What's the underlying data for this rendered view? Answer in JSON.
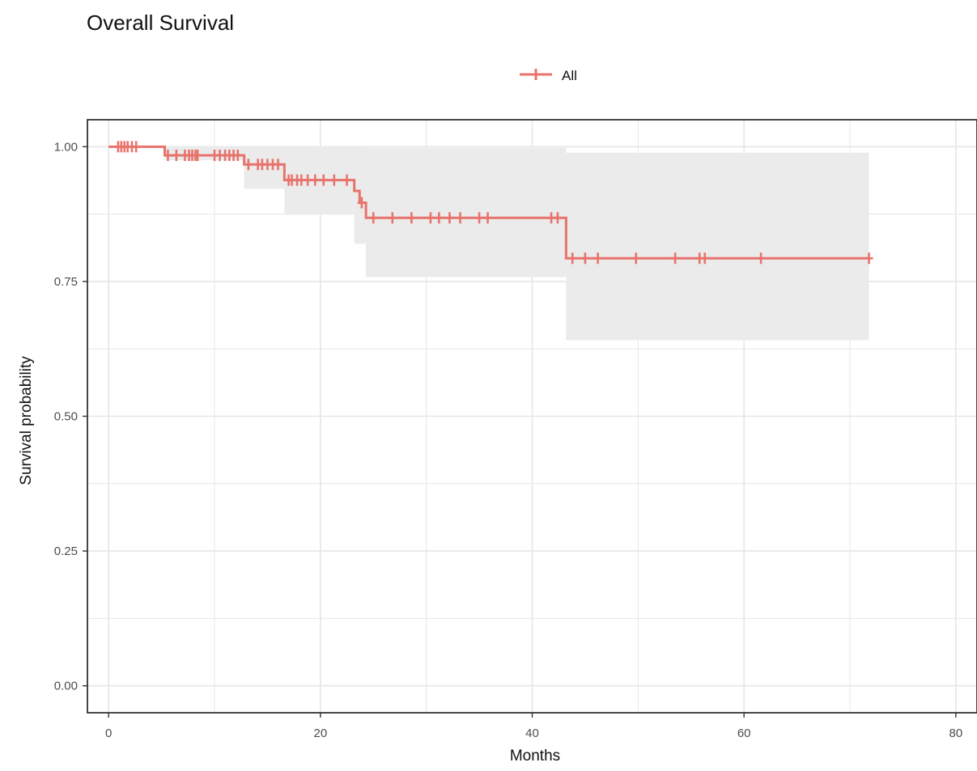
{
  "chart_data": {
    "type": "line",
    "subtype": "kaplan-meier",
    "title": "Overall Survival",
    "xlabel": "Months",
    "ylabel": "Survival probability",
    "xlim": [
      -2,
      82
    ],
    "ylim": [
      -0.05,
      1.05
    ],
    "x_ticks": [
      0,
      20,
      40,
      60,
      80
    ],
    "y_ticks": [
      0.0,
      0.25,
      0.5,
      0.75,
      1.0
    ],
    "x_tick_labels": [
      "0",
      "20",
      "40",
      "60",
      "80"
    ],
    "y_tick_labels": [
      "0.00",
      "0.25",
      "0.50",
      "0.75",
      "1.00"
    ],
    "grid": true,
    "legend_position": "top",
    "colors": {
      "series": "#e8736c",
      "ci": "#ebebeb",
      "grid": "#e6e6e6",
      "border": "#1a1a1a"
    },
    "series": [
      {
        "name": "All",
        "steps": [
          [
            0,
            1.0
          ],
          [
            5.3,
            0.984
          ],
          [
            12.8,
            0.967
          ],
          [
            16.6,
            0.938
          ],
          [
            23.2,
            0.918
          ],
          [
            23.7,
            0.896
          ],
          [
            24.3,
            0.868
          ],
          [
            43.2,
            0.793
          ]
        ],
        "end_x": 71.8,
        "ci_blocks": [
          {
            "x0": 0,
            "x1": 5.3,
            "lower": 1.0,
            "upper": 1.0
          },
          {
            "x0": 5.3,
            "x1": 12.8,
            "lower": 0.975,
            "upper": 1.0
          },
          {
            "x0": 12.8,
            "x1": 16.6,
            "lower": 0.922,
            "upper": 1.0
          },
          {
            "x0": 16.6,
            "x1": 23.2,
            "lower": 0.874,
            "upper": 1.0
          },
          {
            "x0": 23.2,
            "x1": 24.3,
            "lower": 0.82,
            "upper": 1.0
          },
          {
            "x0": 24.3,
            "x1": 43.2,
            "lower": 0.758,
            "upper": 0.998
          },
          {
            "x0": 43.2,
            "x1": 71.8,
            "lower": 0.641,
            "upper": 0.989
          }
        ],
        "censor_times": [
          0.9,
          1.2,
          1.5,
          1.8,
          2.2,
          2.6,
          5.6,
          6.4,
          7.2,
          7.6,
          7.9,
          8.2,
          8.4,
          10.0,
          10.5,
          11.0,
          11.4,
          11.8,
          12.2,
          13.2,
          14.1,
          14.5,
          15.0,
          15.5,
          16.0,
          17.0,
          17.3,
          17.8,
          18.2,
          18.8,
          19.5,
          20.3,
          21.3,
          22.5,
          23.9,
          25.0,
          26.8,
          28.6,
          30.4,
          31.2,
          32.2,
          33.2,
          35.0,
          35.8,
          41.8,
          42.4,
          43.8,
          45.0,
          46.2,
          49.8,
          53.5,
          55.8,
          56.3,
          61.6,
          71.8
        ]
      }
    ]
  }
}
